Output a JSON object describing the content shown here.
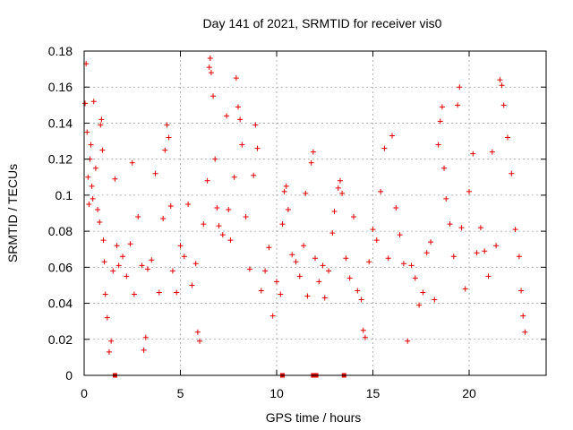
{
  "chart_data": {
    "type": "scatter",
    "title": "Day 141 of 2021, SRMTID for receiver vis0",
    "xlabel": "GPS time / hours",
    "ylabel": "SRMTID / TECUs",
    "xlim": [
      0,
      24
    ],
    "ylim": [
      0,
      0.18
    ],
    "xticks": [
      0,
      5,
      10,
      15,
      20
    ],
    "yticks": [
      0,
      0.02,
      0.04,
      0.06,
      0.08,
      0.1,
      0.12,
      0.14,
      0.16,
      0.18
    ],
    "xtick_labels": [
      "0",
      "5",
      "10",
      "15",
      "20"
    ],
    "ytick_labels": [
      "0",
      "0.02",
      "0.04",
      "0.06",
      "0.08",
      "0.1",
      "0.12",
      "0.14",
      "0.16",
      "0.18"
    ],
    "grid": true,
    "marker": "+",
    "color": "#e00000",
    "series": [
      {
        "name": "SRMTID",
        "points": [
          [
            0.05,
            0.151
          ],
          [
            0.1,
            0.173
          ],
          [
            0.15,
            0.135
          ],
          [
            0.2,
            0.11
          ],
          [
            0.25,
            0.095
          ],
          [
            0.3,
            0.12
          ],
          [
            0.35,
            0.128
          ],
          [
            0.4,
            0.105
          ],
          [
            0.45,
            0.098
          ],
          [
            0.5,
            0.152
          ],
          [
            0.6,
            0.115
          ],
          [
            0.7,
            0.092
          ],
          [
            0.8,
            0.085
          ],
          [
            0.85,
            0.139
          ],
          [
            0.9,
            0.142
          ],
          [
            0.95,
            0.125
          ],
          [
            1.0,
            0.075
          ],
          [
            1.05,
            0.063
          ],
          [
            1.1,
            0.045
          ],
          [
            1.2,
            0.032
          ],
          [
            1.3,
            0.013
          ],
          [
            1.4,
            0.019
          ],
          [
            1.5,
            0.058
          ],
          [
            1.6,
            0.109
          ],
          [
            1.7,
            0.072
          ],
          [
            1.8,
            0.061
          ],
          [
            2.0,
            0.066
          ],
          [
            2.2,
            0.055
          ],
          [
            2.4,
            0.073
          ],
          [
            2.5,
            0.118
          ],
          [
            2.6,
            0.045
          ],
          [
            2.8,
            0.088
          ],
          [
            3.0,
            0.061
          ],
          [
            3.1,
            0.014
          ],
          [
            3.2,
            0.021
          ],
          [
            3.3,
            0.059
          ],
          [
            3.5,
            0.064
          ],
          [
            3.7,
            0.112
          ],
          [
            3.9,
            0.046
          ],
          [
            4.1,
            0.087
          ],
          [
            4.2,
            0.125
          ],
          [
            4.3,
            0.139
          ],
          [
            4.4,
            0.132
          ],
          [
            4.5,
            0.094
          ],
          [
            4.6,
            0.058
          ],
          [
            4.8,
            0.046
          ],
          [
            5.0,
            0.072
          ],
          [
            5.2,
            0.066
          ],
          [
            5.4,
            0.095
          ],
          [
            5.6,
            0.05
          ],
          [
            5.8,
            0.062
          ],
          [
            5.9,
            0.024
          ],
          [
            6.0,
            0.019
          ],
          [
            6.2,
            0.084
          ],
          [
            6.4,
            0.108
          ],
          [
            6.5,
            0.171
          ],
          [
            6.55,
            0.176
          ],
          [
            6.6,
            0.168
          ],
          [
            6.7,
            0.155
          ],
          [
            6.8,
            0.12
          ],
          [
            6.9,
            0.093
          ],
          [
            7.0,
            0.083
          ],
          [
            7.2,
            0.078
          ],
          [
            7.4,
            0.144
          ],
          [
            7.5,
            0.092
          ],
          [
            7.6,
            0.075
          ],
          [
            7.8,
            0.11
          ],
          [
            7.9,
            0.165
          ],
          [
            8.0,
            0.149
          ],
          [
            8.1,
            0.142
          ],
          [
            8.2,
            0.128
          ],
          [
            8.4,
            0.088
          ],
          [
            8.6,
            0.059
          ],
          [
            8.8,
            0.111
          ],
          [
            8.9,
            0.139
          ],
          [
            9.0,
            0.126
          ],
          [
            9.2,
            0.047
          ],
          [
            9.4,
            0.058
          ],
          [
            9.6,
            0.071
          ],
          [
            9.8,
            0.033
          ],
          [
            10.0,
            0.052
          ],
          [
            10.2,
            0.045
          ],
          [
            10.3,
            0.084
          ],
          [
            10.4,
            0.102
          ],
          [
            10.5,
            0.105
          ],
          [
            10.6,
            0.092
          ],
          [
            10.8,
            0.067
          ],
          [
            11.0,
            0.063
          ],
          [
            11.2,
            0.055
          ],
          [
            11.4,
            0.072
          ],
          [
            11.5,
            0.101
          ],
          [
            11.6,
            0.044
          ],
          [
            11.8,
            0.118
          ],
          [
            11.9,
            0.124
          ],
          [
            12.0,
            0.065
          ],
          [
            12.2,
            0.052
          ],
          [
            12.4,
            0.061
          ],
          [
            12.5,
            0.043
          ],
          [
            12.7,
            0.058
          ],
          [
            12.9,
            0.079
          ],
          [
            13.0,
            0.091
          ],
          [
            13.2,
            0.104
          ],
          [
            13.3,
            0.108
          ],
          [
            13.4,
            0.101
          ],
          [
            13.6,
            0.065
          ],
          [
            13.8,
            0.054
          ],
          [
            14.0,
            0.088
          ],
          [
            14.2,
            0.047
          ],
          [
            14.4,
            0.042
          ],
          [
            14.5,
            0.025
          ],
          [
            14.6,
            0.021
          ],
          [
            14.8,
            0.063
          ],
          [
            15.0,
            0.081
          ],
          [
            15.2,
            0.075
          ],
          [
            15.4,
            0.102
          ],
          [
            15.6,
            0.126
          ],
          [
            15.8,
            0.065
          ],
          [
            16.0,
            0.133
          ],
          [
            16.2,
            0.093
          ],
          [
            16.4,
            0.078
          ],
          [
            16.6,
            0.062
          ],
          [
            16.8,
            0.019
          ],
          [
            17.0,
            0.061
          ],
          [
            17.2,
            0.054
          ],
          [
            17.4,
            0.039
          ],
          [
            17.6,
            0.046
          ],
          [
            17.8,
            0.068
          ],
          [
            18.0,
            0.074
          ],
          [
            18.2,
            0.042
          ],
          [
            18.4,
            0.128
          ],
          [
            18.5,
            0.141
          ],
          [
            18.6,
            0.149
          ],
          [
            18.7,
            0.115
          ],
          [
            18.8,
            0.098
          ],
          [
            19.0,
            0.084
          ],
          [
            19.2,
            0.066
          ],
          [
            19.4,
            0.15
          ],
          [
            19.5,
            0.16
          ],
          [
            19.6,
            0.082
          ],
          [
            19.8,
            0.048
          ],
          [
            20.0,
            0.102
          ],
          [
            20.2,
            0.123
          ],
          [
            20.4,
            0.068
          ],
          [
            20.6,
            0.082
          ],
          [
            20.8,
            0.069
          ],
          [
            21.0,
            0.055
          ],
          [
            21.2,
            0.124
          ],
          [
            21.4,
            0.072
          ],
          [
            21.6,
            0.164
          ],
          [
            21.7,
            0.161
          ],
          [
            21.8,
            0.15
          ],
          [
            22.0,
            0.132
          ],
          [
            22.2,
            0.112
          ],
          [
            22.4,
            0.081
          ],
          [
            22.6,
            0.066
          ],
          [
            22.7,
            0.047
          ],
          [
            22.8,
            0.033
          ],
          [
            22.9,
            0.024
          ]
        ],
        "zero_points": [
          1.6,
          10.3,
          11.9,
          12.05,
          13.5
        ]
      }
    ]
  }
}
